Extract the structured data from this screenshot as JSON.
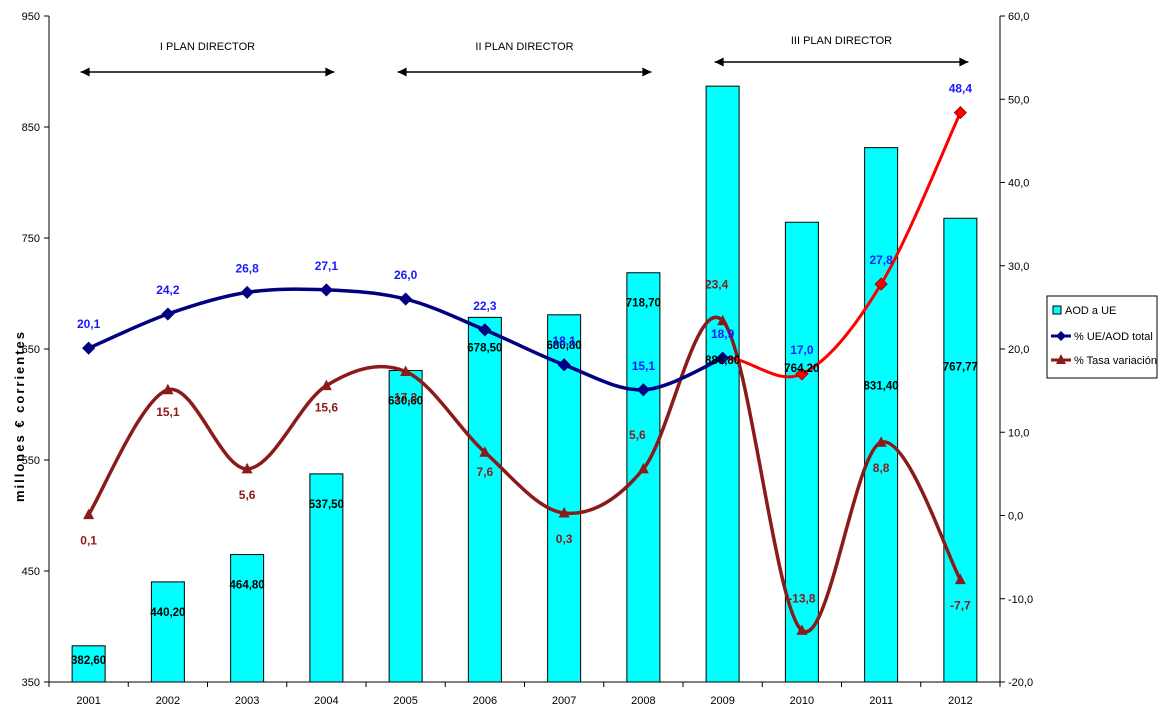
{
  "chart_data": {
    "type": "bar",
    "categories": [
      "2001",
      "2002",
      "2003",
      "2004",
      "2005",
      "2006",
      "2007",
      "2008",
      "2009",
      "2010",
      "2011",
      "2012"
    ],
    "y_left": {
      "min": 350,
      "max": 950,
      "ticks": [
        "350",
        "450",
        "550",
        "650",
        "750",
        "850",
        "950"
      ],
      "label": "millones € corrientes"
    },
    "y_right": {
      "min": -20,
      "max": 60,
      "ticks": [
        "-20,0",
        "-10,0",
        "0,0",
        "10,0",
        "20,0",
        "30,0",
        "40,0",
        "50,0",
        "60,0"
      ]
    },
    "series": [
      {
        "name": "AOD a UE",
        "type": "bar",
        "axis": "left",
        "color": "#00ffff",
        "values": [
          382.6,
          440.2,
          464.8,
          537.5,
          630.6,
          678.5,
          680.8,
          718.7,
          886.8,
          764.2,
          831.4,
          767.77
        ],
        "labels": [
          "382,60",
          "440,20",
          "464,80",
          "537,50",
          "630,60",
          "678,50",
          "680,80",
          "718,70",
          "886,80",
          "764,20",
          "831,40",
          "767,77"
        ]
      },
      {
        "name": "% UE/AOD total",
        "type": "line",
        "axis": "right",
        "color": "#000080",
        "highlight_color": "#ff0000",
        "values": [
          20.1,
          24.2,
          26.8,
          27.1,
          26.0,
          22.3,
          18.1,
          15.1,
          18.9,
          17.0,
          27.8,
          48.4
        ],
        "labels": [
          "20,1",
          "24,2",
          "26,8",
          "27,1",
          "26,0",
          "22,3",
          "18,1",
          "15,1",
          "18,9",
          "17,0",
          "27,8",
          "48,4"
        ]
      },
      {
        "name": "% Tasa variación",
        "type": "line",
        "axis": "right",
        "color": "#8b1a1a",
        "values": [
          0.1,
          15.1,
          5.6,
          15.6,
          17.3,
          7.6,
          0.3,
          5.6,
          23.4,
          -13.8,
          8.8,
          -7.7
        ],
        "labels": [
          "0,1",
          "15,1",
          "5,6",
          "15,6",
          "17,3",
          "7,6",
          "0,3",
          "5,6",
          "23,4",
          "-13,8",
          "8,8",
          "-7,7"
        ]
      }
    ],
    "annotations": [
      {
        "text": "I PLAN DIRECTOR",
        "from": "2001",
        "to": "2004"
      },
      {
        "text": "II PLAN DIRECTOR",
        "from": "2005",
        "to": "2008"
      },
      {
        "text": "III PLAN DIRECTOR",
        "from": "2009",
        "to": "2012"
      }
    ],
    "legend": "right",
    "grid": false
  }
}
